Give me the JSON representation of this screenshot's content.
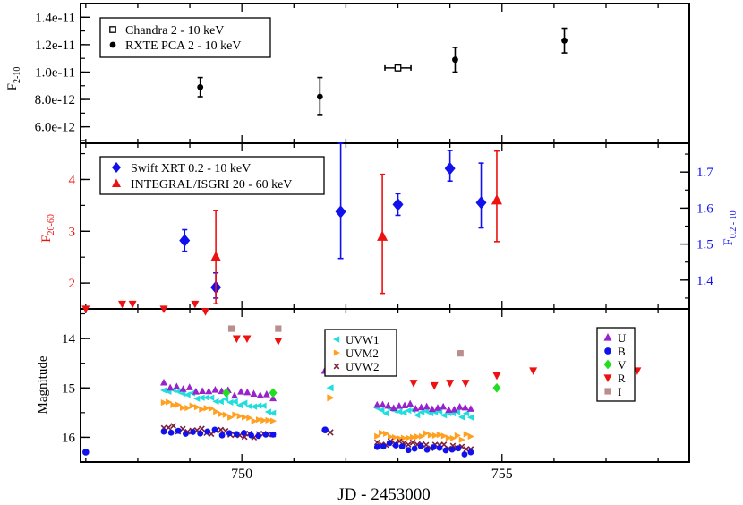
{
  "figure": {
    "xlabel": "JD - 2453000",
    "colors": {
      "black": "#000000",
      "red": "#ee1111",
      "blue": "#1111ee",
      "cyan": "#22dddd",
      "orange": "#ffa020",
      "maroon": "#7a1f3d",
      "purple": "#9922cc",
      "green": "#22dd22",
      "gray": "#bb8e8e"
    }
  },
  "chart_data": [
    {
      "type": "scatter",
      "panel": "top",
      "ylabel": "F",
      "ylabel_sub": "2-10",
      "xlim": [
        746.9,
        758.6
      ],
      "ylim": [
        4.8e-12,
        1.5e-11
      ],
      "yticks": [
        6e-12,
        8e-12,
        1e-11,
        1.2e-11,
        1.4e-11
      ],
      "ytick_labels": [
        "6.0e-12",
        "8.0e-12",
        "1.0e-11",
        "1.2e-11",
        "1.4e-11"
      ],
      "legend_position": "top-left",
      "series": [
        {
          "name": "Chandra 2 - 10 keV",
          "marker": "open-square",
          "color": "#000000",
          "points": [
            {
              "x": 753.0,
              "y": 1.03e-11,
              "ylo": 1.01e-11,
              "yhi": 1.05e-11,
              "xerr": 0.25
            }
          ]
        },
        {
          "name": "RXTE PCA 2 - 10 keV",
          "marker": "circle",
          "color": "#000000",
          "points": [
            {
              "x": 749.2,
              "y": 8.9e-12,
              "ylo": 8.2e-12,
              "yhi": 9.6e-12
            },
            {
              "x": 751.5,
              "y": 8.2e-12,
              "ylo": 6.9e-12,
              "yhi": 9.6e-12
            },
            {
              "x": 754.1,
              "y": 1.09e-11,
              "ylo": 1e-11,
              "yhi": 1.18e-11
            },
            {
              "x": 756.2,
              "y": 1.23e-11,
              "ylo": 1.14e-11,
              "yhi": 1.32e-11
            }
          ]
        }
      ]
    },
    {
      "type": "scatter",
      "panel": "middle",
      "ylabel_left": "F",
      "ylabel_left_sub": "20-60",
      "ylabel_right": "F",
      "ylabel_right_sub": "0.2 - 10",
      "xlim": [
        746.9,
        758.6
      ],
      "ylim_left": [
        1.5,
        4.7
      ],
      "ylim_right": [
        1.32,
        1.78
      ],
      "yticks_left": [
        2,
        3,
        4
      ],
      "ytick_labels_left": [
        "2",
        "3",
        "4"
      ],
      "yticks_right": [
        1.4,
        1.5,
        1.6,
        1.7
      ],
      "ytick_labels_right": [
        "1.4",
        "1.5",
        "1.6",
        "1.7"
      ],
      "legend_position": "top-left",
      "series": [
        {
          "name": "Swift XRT 0.2 - 10 keV",
          "axis": "right",
          "marker": "diamond",
          "color": "#1111ee",
          "points": [
            {
              "x": 748.9,
              "y": 1.51,
              "ylo": 1.48,
              "yhi": 1.54
            },
            {
              "x": 749.5,
              "y": 1.38,
              "ylo": 1.35,
              "yhi": 1.42
            },
            {
              "x": 751.9,
              "y": 1.59,
              "ylo": 1.46,
              "yhi": 1.78
            },
            {
              "x": 753.0,
              "y": 1.61,
              "ylo": 1.58,
              "yhi": 1.64
            },
            {
              "x": 754.0,
              "y": 1.71,
              "ylo": 1.675,
              "yhi": 1.76
            },
            {
              "x": 754.6,
              "y": 1.615,
              "ylo": 1.545,
              "yhi": 1.725
            }
          ]
        },
        {
          "name": "INTEGRAL/ISGRI 20 - 60 keV",
          "axis": "left",
          "marker": "triangle-up",
          "color": "#ee1111",
          "points": [
            {
              "x": 749.5,
              "y": 2.5,
              "ylo": 1.6,
              "yhi": 3.4
            },
            {
              "x": 752.7,
              "y": 2.9,
              "ylo": 1.8,
              "yhi": 4.1
            },
            {
              "x": 754.9,
              "y": 3.6,
              "ylo": 2.8,
              "yhi": 4.55
            }
          ]
        }
      ]
    },
    {
      "type": "scatter",
      "panel": "bottom",
      "ylabel": "Magnitude",
      "xlabel": "JD - 2453000",
      "xlim": [
        746.9,
        758.6
      ],
      "ylim": [
        16.5,
        13.4
      ],
      "yticks": [
        14,
        15,
        16
      ],
      "ytick_labels": [
        "14",
        "15",
        "16"
      ],
      "xticks": [
        750,
        755
      ],
      "xtick_labels": [
        "750",
        "755"
      ],
      "legend_uv_position": "top-center",
      "legend_opt_position": "top-right",
      "series": [
        {
          "name": "UVW1",
          "legend": "uv",
          "marker": "triangle-left",
          "color": "#22dddd",
          "segments": [
            {
              "x0": 748.5,
              "x1": 750.6,
              "y0": 15.05,
              "y1": 15.45,
              "n": 24
            },
            {
              "x0": 752.6,
              "x1": 754.4,
              "y0": 15.45,
              "y1": 15.55,
              "n": 22
            }
          ],
          "points": [
            {
              "x": 751.7,
              "y": 15.0
            }
          ]
        },
        {
          "name": "UVM2",
          "legend": "uv",
          "marker": "triangle-right",
          "color": "#ffa020",
          "segments": [
            {
              "x0": 748.5,
              "x1": 750.6,
              "y0": 15.3,
              "y1": 15.7,
              "n": 24
            },
            {
              "x0": 752.6,
              "x1": 754.4,
              "y0": 15.95,
              "y1": 16.0,
              "n": 22
            }
          ],
          "points": [
            {
              "x": 751.7,
              "y": 15.2
            }
          ]
        },
        {
          "name": "UVW2",
          "legend": "uv",
          "marker": "x",
          "color": "#7a1f3d",
          "segments": [
            {
              "x0": 748.5,
              "x1": 750.6,
              "y0": 15.8,
              "y1": 16.0,
              "n": 24
            },
            {
              "x0": 752.6,
              "x1": 754.4,
              "y0": 16.1,
              "y1": 16.25,
              "n": 22
            }
          ],
          "points": [
            {
              "x": 751.7,
              "y": 15.9
            }
          ]
        },
        {
          "name": "U",
          "legend": "opt",
          "marker": "triangle-up",
          "color": "#9922cc",
          "segments": [
            {
              "x0": 748.5,
              "x1": 750.6,
              "y0": 14.95,
              "y1": 15.2,
              "n": 18
            },
            {
              "x0": 752.6,
              "x1": 754.4,
              "y0": 15.35,
              "y1": 15.4,
              "n": 18
            }
          ],
          "points": [
            {
              "x": 751.6,
              "y": 14.65
            }
          ]
        },
        {
          "name": "B",
          "legend": "opt",
          "marker": "circle",
          "color": "#1111ee",
          "segments": [
            {
              "x0": 748.5,
              "x1": 750.6,
              "y0": 15.85,
              "y1": 15.95,
              "n": 16
            },
            {
              "x0": 752.6,
              "x1": 754.4,
              "y0": 16.15,
              "y1": 16.3,
              "n": 16
            }
          ],
          "points": [
            {
              "x": 747.0,
              "y": 16.3
            },
            {
              "x": 751.6,
              "y": 15.85
            }
          ]
        },
        {
          "name": "V",
          "legend": "opt",
          "marker": "diamond",
          "color": "#22dd22",
          "points": [
            {
              "x": 749.7,
              "y": 15.1
            },
            {
              "x": 750.6,
              "y": 15.1
            },
            {
              "x": 751.7,
              "y": 14.55
            },
            {
              "x": 754.9,
              "y": 15.0
            }
          ]
        },
        {
          "name": "R",
          "legend": "opt",
          "marker": "triangle-down",
          "color": "#ee1111",
          "points": [
            {
              "x": 747.0,
              "y": 13.4
            },
            {
              "x": 747.7,
              "y": 13.3
            },
            {
              "x": 747.9,
              "y": 13.3
            },
            {
              "x": 748.5,
              "y": 13.4
            },
            {
              "x": 749.1,
              "y": 13.3
            },
            {
              "x": 749.3,
              "y": 13.45
            },
            {
              "x": 749.9,
              "y": 14.0
            },
            {
              "x": 750.1,
              "y": 14.0
            },
            {
              "x": 750.7,
              "y": 14.05
            },
            {
              "x": 753.3,
              "y": 14.9
            },
            {
              "x": 753.7,
              "y": 14.95
            },
            {
              "x": 754.0,
              "y": 14.9
            },
            {
              "x": 754.3,
              "y": 14.9
            },
            {
              "x": 754.9,
              "y": 14.75
            },
            {
              "x": 755.6,
              "y": 14.65
            },
            {
              "x": 757.6,
              "y": 14.65
            }
          ]
        },
        {
          "name": "I",
          "legend": "opt",
          "marker": "square",
          "color": "#bb8e8e",
          "points": [
            {
              "x": 749.8,
              "y": 13.8
            },
            {
              "x": 750.7,
              "y": 13.8
            },
            {
              "x": 754.2,
              "y": 14.3
            }
          ]
        }
      ]
    }
  ]
}
